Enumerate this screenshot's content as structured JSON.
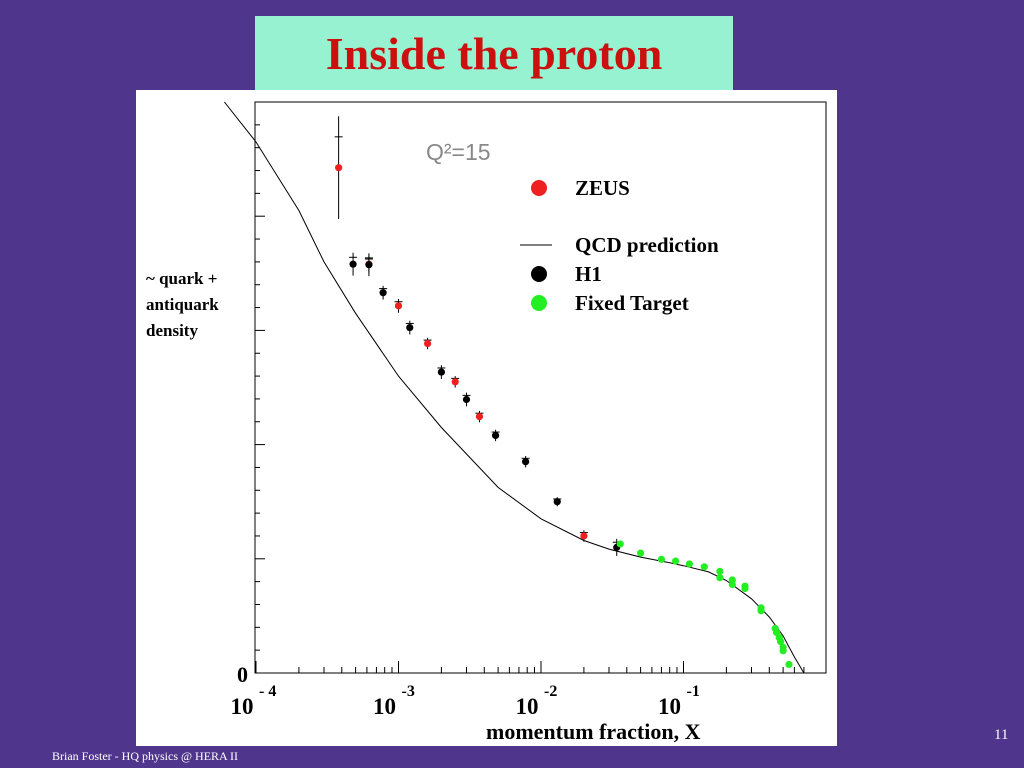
{
  "slide": {
    "title": "Inside the proton",
    "footer": "Brian Foster - HQ physics @ HERA II",
    "page_number": "11"
  },
  "colors": {
    "background": "#50358c",
    "title_box": "#97f2d2",
    "title_text": "#cc1010",
    "zeus": "#ee2020",
    "h1": "#000000",
    "fixed_target": "#22ee22"
  },
  "chart_data": {
    "type": "scatter",
    "annotation": "Q²=15",
    "ylabel_lines": [
      "~ quark +",
      "antiquark",
      "density"
    ],
    "xlabel": "momentum fraction, X",
    "x_scale": "log",
    "xlim": [
      0.0001,
      1
    ],
    "ylim": [
      0,
      1
    ],
    "y_zero_label": "0",
    "x_ticks": [
      {
        "x": 0.0001,
        "base": "10",
        "exp": "- 4"
      },
      {
        "x": 0.001,
        "base": "10",
        "exp": "-3"
      },
      {
        "x": 0.01,
        "base": "10",
        "exp": "-2"
      },
      {
        "x": 0.1,
        "base": "10",
        "exp": "-1"
      }
    ],
    "legend": {
      "placement": "top-right",
      "entries": [
        {
          "label": "ZEUS",
          "marker": "dot",
          "color": "#ee2020"
        },
        {
          "label": "QCD prediction",
          "marker": "line",
          "color": "#000000"
        },
        {
          "label": "H1",
          "marker": "dot",
          "color": "#000000"
        },
        {
          "label": "Fixed Target",
          "marker": "dot",
          "color": "#22ee22"
        }
      ]
    },
    "curve": {
      "name": "QCD prediction",
      "points": [
        [
          6e-05,
          1.0
        ],
        [
          0.0001,
          0.93
        ],
        [
          0.0002,
          0.81
        ],
        [
          0.0003,
          0.72
        ],
        [
          0.0005,
          0.63
        ],
        [
          0.001,
          0.52
        ],
        [
          0.002,
          0.43
        ],
        [
          0.005,
          0.325
        ],
        [
          0.01,
          0.27
        ],
        [
          0.02,
          0.232
        ],
        [
          0.03,
          0.217
        ],
        [
          0.05,
          0.203
        ],
        [
          0.08,
          0.193
        ],
        [
          0.1,
          0.188
        ],
        [
          0.15,
          0.177
        ],
        [
          0.2,
          0.162
        ],
        [
          0.3,
          0.13
        ],
        [
          0.4,
          0.098
        ],
        [
          0.5,
          0.065
        ],
        [
          0.6,
          0.028
        ],
        [
          0.7,
          0.0
        ]
      ]
    },
    "series": [
      {
        "name": "ZEUS",
        "color": "#ee2020",
        "points": [
          {
            "x": 0.00038,
            "y": 0.885,
            "err": 0.09
          },
          {
            "x": 0.00062,
            "y": 0.716,
            "err": 0.015
          },
          {
            "x": 0.001,
            "y": 0.643,
            "err": 0.012
          },
          {
            "x": 0.0016,
            "y": 0.577,
            "err": 0.01
          },
          {
            "x": 0.0025,
            "y": 0.51,
            "err": 0.01
          },
          {
            "x": 0.0037,
            "y": 0.449,
            "err": 0.01
          },
          {
            "x": 0.02,
            "y": 0.24,
            "err": 0.01
          }
        ]
      },
      {
        "name": "H1",
        "color": "#000000",
        "points": [
          {
            "x": 0.00048,
            "y": 0.716,
            "err": 0.02
          },
          {
            "x": 0.00062,
            "y": 0.715,
            "err": 0.02
          },
          {
            "x": 0.00078,
            "y": 0.666,
            "err": 0.012
          },
          {
            "x": 0.0012,
            "y": 0.605,
            "err": 0.012
          },
          {
            "x": 0.002,
            "y": 0.527,
            "err": 0.012
          },
          {
            "x": 0.003,
            "y": 0.479,
            "err": 0.012
          },
          {
            "x": 0.0048,
            "y": 0.416,
            "err": 0.01
          },
          {
            "x": 0.0078,
            "y": 0.37,
            "err": 0.01
          },
          {
            "x": 0.013,
            "y": 0.3,
            "err": 0.008
          },
          {
            "x": 0.034,
            "y": 0.22,
            "err": 0.015
          }
        ]
      },
      {
        "name": "Fixed Target",
        "color": "#22ee22",
        "points": [
          {
            "x": 0.036,
            "y": 0.226
          },
          {
            "x": 0.05,
            "y": 0.21
          },
          {
            "x": 0.07,
            "y": 0.199
          },
          {
            "x": 0.088,
            "y": 0.196
          },
          {
            "x": 0.11,
            "y": 0.191
          },
          {
            "x": 0.14,
            "y": 0.186
          },
          {
            "x": 0.18,
            "y": 0.178
          },
          {
            "x": 0.18,
            "y": 0.167
          },
          {
            "x": 0.22,
            "y": 0.163
          },
          {
            "x": 0.22,
            "y": 0.155
          },
          {
            "x": 0.27,
            "y": 0.152
          },
          {
            "x": 0.27,
            "y": 0.148
          },
          {
            "x": 0.35,
            "y": 0.114
          },
          {
            "x": 0.35,
            "y": 0.109
          },
          {
            "x": 0.44,
            "y": 0.078
          },
          {
            "x": 0.45,
            "y": 0.071
          },
          {
            "x": 0.47,
            "y": 0.062
          },
          {
            "x": 0.48,
            "y": 0.055
          },
          {
            "x": 0.5,
            "y": 0.045
          },
          {
            "x": 0.5,
            "y": 0.039
          },
          {
            "x": 0.55,
            "y": 0.015
          }
        ]
      }
    ]
  }
}
